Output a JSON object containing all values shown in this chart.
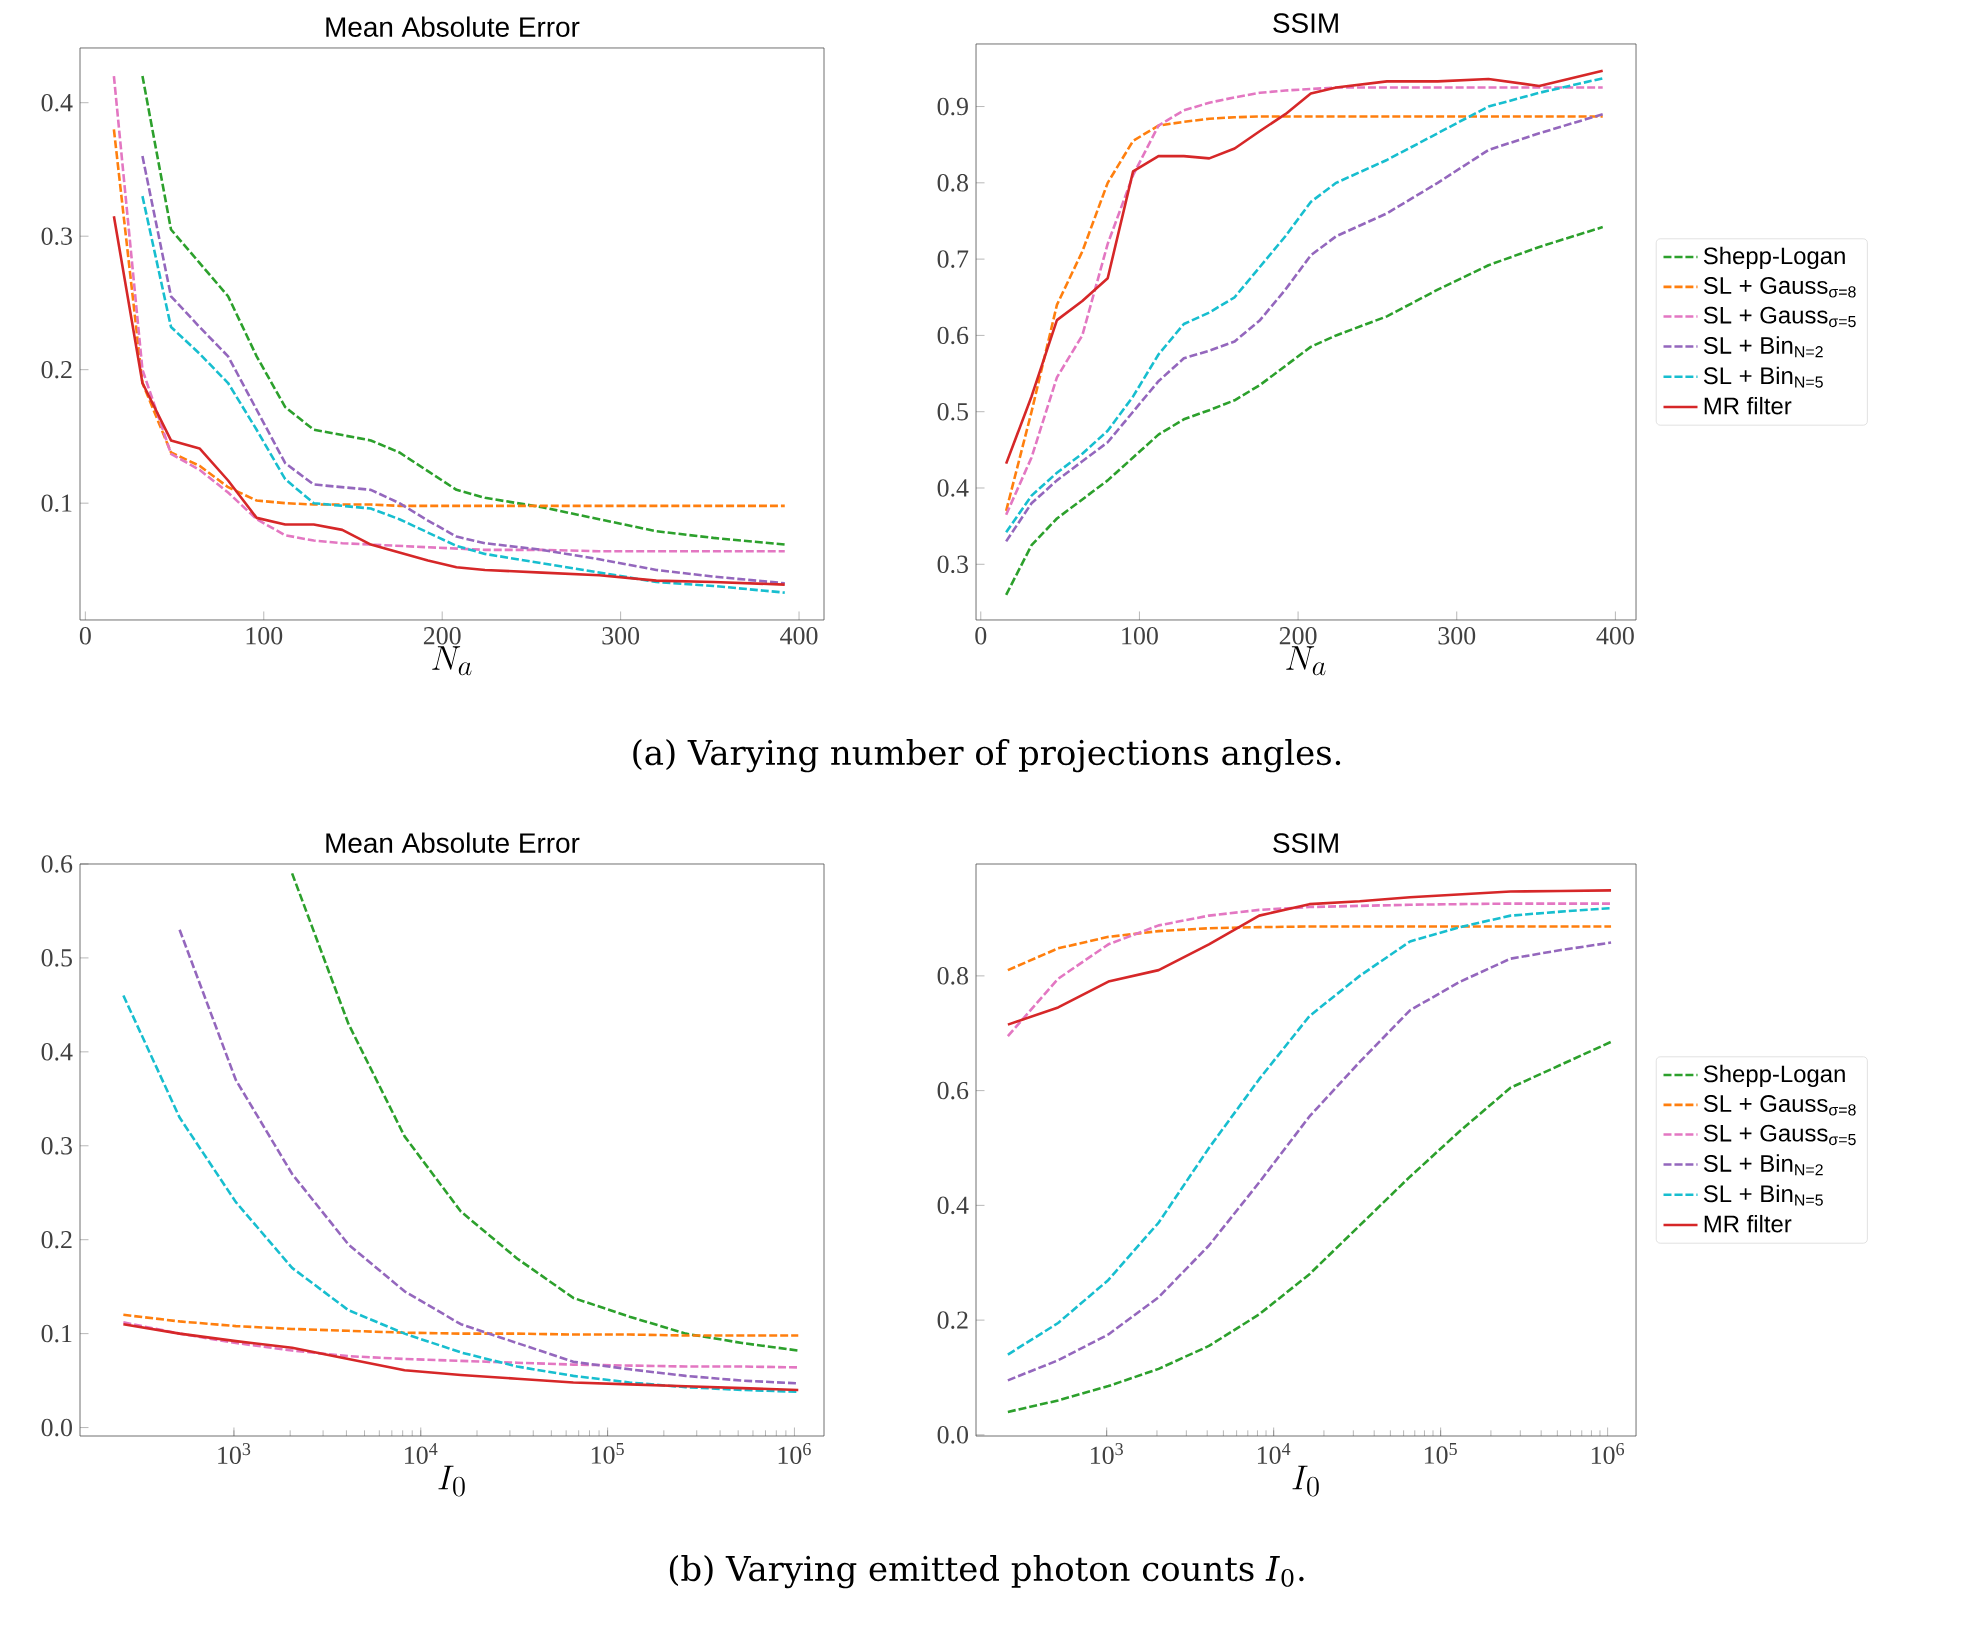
{
  "chart_data": [
    {
      "type": "line",
      "title": "Mean Absolute Error",
      "xlabel": "N_a",
      "x": [
        16,
        32,
        48,
        64,
        80,
        96,
        112,
        128,
        144,
        160,
        176,
        192,
        208,
        224,
        256,
        288,
        320,
        352,
        392
      ],
      "xlim": [
        -3,
        414
      ],
      "ylim": [
        0.0125,
        0.441
      ],
      "xticks": [
        0,
        100,
        200,
        300,
        400
      ],
      "yticks": [
        0.1,
        0.2,
        0.3,
        0.4
      ],
      "grid": false,
      "legend": false,
      "series": [
        {
          "color": "#2ca02c",
          "line_style": "dashed",
          "values": [
            null,
            0.42,
            0.305,
            0.28,
            0.255,
            0.21,
            0.172,
            0.155,
            0.151,
            0.147,
            0.138,
            0.124,
            0.11,
            0.104,
            0.097,
            0.088,
            0.079,
            0.074,
            0.069
          ]
        },
        {
          "color": "#ff7f0e",
          "line_style": "dashed",
          "values": [
            0.38,
            0.19,
            0.138,
            0.128,
            0.112,
            0.102,
            0.1,
            0.099,
            0.099,
            0.099,
            0.098,
            0.098,
            0.098,
            0.098,
            0.098,
            0.098,
            0.098,
            0.098,
            0.098
          ]
        },
        {
          "color": "#e377c2",
          "line_style": "dashed",
          "values": [
            0.42,
            0.2,
            0.137,
            0.125,
            0.108,
            0.088,
            0.076,
            0.072,
            0.07,
            0.069,
            0.068,
            0.067,
            0.066,
            0.065,
            0.065,
            0.064,
            0.064,
            0.064,
            0.064
          ]
        },
        {
          "color": "#9467bd",
          "line_style": "dashed",
          "values": [
            null,
            0.36,
            0.255,
            0.232,
            0.21,
            0.17,
            0.13,
            0.114,
            0.112,
            0.11,
            0.1,
            0.087,
            0.075,
            0.07,
            0.065,
            0.058,
            0.05,
            0.045,
            0.04
          ]
        },
        {
          "color": "#17becf",
          "line_style": "dashed",
          "values": [
            null,
            0.33,
            0.232,
            0.212,
            0.19,
            0.155,
            0.118,
            0.1,
            0.098,
            0.096,
            0.088,
            0.078,
            0.068,
            0.062,
            0.055,
            0.048,
            0.041,
            0.038,
            0.033
          ]
        },
        {
          "color": "#d62728",
          "line_style": "solid",
          "values": [
            0.315,
            0.19,
            0.147,
            0.141,
            0.117,
            0.089,
            0.084,
            0.084,
            0.08,
            0.069,
            0.063,
            0.057,
            0.052,
            0.05,
            0.048,
            0.046,
            0.042,
            0.041,
            0.039
          ]
        }
      ],
      "annotations": [
        "(a) Varying number of projections angles."
      ]
    },
    {
      "type": "line",
      "title": "SSIM",
      "xlabel": "N_a",
      "x": [
        16,
        32,
        48,
        64,
        80,
        96,
        112,
        128,
        144,
        160,
        176,
        192,
        208,
        224,
        256,
        288,
        320,
        352,
        392
      ],
      "xlim": [
        -3,
        413
      ],
      "ylim": [
        0.227,
        0.982
      ],
      "xticks": [
        0,
        100,
        200,
        300,
        400
      ],
      "yticks": [
        0.3,
        0.4,
        0.5,
        0.6,
        0.7,
        0.8,
        0.9
      ],
      "grid": false,
      "legend": "right",
      "series": [
        {
          "name": "Shepp-Logan",
          "color": "#2ca02c",
          "line_style": "dashed",
          "values": [
            0.26,
            0.325,
            0.36,
            0.385,
            0.41,
            0.44,
            0.47,
            0.49,
            0.502,
            0.515,
            0.535,
            0.56,
            0.585,
            0.6,
            0.625,
            0.66,
            0.692,
            0.716,
            0.742
          ]
        },
        {
          "name": "SL + Gauss$_{σ=8}$",
          "color": "#ff7f0e",
          "line_style": "dashed",
          "values": [
            0.37,
            0.5,
            0.64,
            0.71,
            0.8,
            0.855,
            0.875,
            0.88,
            0.884,
            0.886,
            0.887,
            0.887,
            0.887,
            0.887,
            0.887,
            0.887,
            0.887,
            0.887,
            0.887
          ]
        },
        {
          "name": "SL + Gauss$_{σ=5}$",
          "color": "#e377c2",
          "line_style": "dashed",
          "values": [
            0.365,
            0.44,
            0.545,
            0.6,
            0.72,
            0.81,
            0.875,
            0.895,
            0.905,
            0.912,
            0.918,
            0.921,
            0.923,
            0.925,
            0.925,
            0.925,
            0.925,
            0.925,
            0.925
          ]
        },
        {
          "name": "SL + Bin$_{N=2}$",
          "color": "#9467bd",
          "line_style": "dashed",
          "values": [
            0.33,
            0.38,
            0.41,
            0.435,
            0.46,
            0.5,
            0.54,
            0.57,
            0.58,
            0.592,
            0.62,
            0.66,
            0.705,
            0.73,
            0.76,
            0.8,
            0.843,
            0.865,
            0.89
          ]
        },
        {
          "name": "SL + Bin$_{N=5}$",
          "color": "#17becf",
          "line_style": "dashed",
          "values": [
            0.342,
            0.39,
            0.42,
            0.445,
            0.475,
            0.52,
            0.575,
            0.615,
            0.63,
            0.65,
            0.69,
            0.73,
            0.775,
            0.8,
            0.83,
            0.865,
            0.9,
            0.918,
            0.937
          ]
        },
        {
          "name": "MR filter",
          "color": "#d62728",
          "line_style": "solid",
          "values": [
            0.432,
            0.52,
            0.62,
            0.645,
            0.675,
            0.815,
            0.835,
            0.835,
            0.832,
            0.845,
            0.868,
            0.89,
            0.917,
            0.925,
            0.933,
            0.933,
            0.936,
            0.927,
            0.947
          ]
        }
      ]
    },
    {
      "type": "line",
      "title": "Mean Absolute Error",
      "xlabel": "I_0",
      "log": "x",
      "x": [
        256,
        512,
        1024,
        2048,
        4096,
        8192,
        16384,
        32768,
        65536,
        131072,
        262144,
        524288,
        1048576
      ],
      "xlim": [
        150,
        1440000
      ],
      "ylim": [
        -0.009,
        0.6
      ],
      "xticks": [
        {
          "value": 1000,
          "label": "10$^{3}$"
        },
        {
          "value": 10000,
          "label": "10$^{4}$"
        },
        {
          "value": 100000,
          "label": "10$^{5}$"
        },
        {
          "value": 1000000,
          "label": "10$^{6}$"
        }
      ],
      "yticks": [
        {
          "value": 0,
          "label": "0.0"
        },
        0.1,
        0.2,
        0.3,
        0.4,
        0.5,
        0.6
      ],
      "grid": false,
      "legend": false,
      "series": [
        {
          "color": "#2ca02c",
          "line_style": "dashed",
          "values": [
            null,
            null,
            null,
            0.59,
            0.43,
            0.31,
            0.23,
            0.18,
            0.138,
            0.118,
            0.1,
            0.09,
            0.082
          ]
        },
        {
          "color": "#ff7f0e",
          "line_style": "dashed",
          "values": [
            0.12,
            0.113,
            0.108,
            0.105,
            0.103,
            0.101,
            0.1,
            0.1,
            0.099,
            0.099,
            0.098,
            0.098,
            0.098
          ]
        },
        {
          "color": "#e377c2",
          "line_style": "dashed",
          "values": [
            0.112,
            0.1,
            0.09,
            0.082,
            0.076,
            0.073,
            0.071,
            0.069,
            0.067,
            0.066,
            0.065,
            0.065,
            0.064
          ]
        },
        {
          "color": "#9467bd",
          "line_style": "dashed",
          "values": [
            null,
            0.53,
            0.37,
            0.27,
            0.195,
            0.145,
            0.11,
            0.09,
            0.07,
            0.062,
            0.055,
            0.05,
            0.047
          ]
        },
        {
          "color": "#17becf",
          "line_style": "dashed",
          "values": [
            0.46,
            0.33,
            0.24,
            0.17,
            0.125,
            0.1,
            0.08,
            0.065,
            0.055,
            0.048,
            0.043,
            0.04,
            0.038
          ]
        },
        {
          "color": "#d62728",
          "line_style": "solid",
          "values": [
            0.11,
            0.1,
            0.092,
            0.085,
            0.073,
            0.061,
            0.056,
            0.052,
            0.048,
            0.046,
            0.044,
            0.042,
            0.04
          ]
        }
      ],
      "annotations": [
        "(b) Varying emitted photon counts *I*$_{0}$."
      ]
    },
    {
      "type": "line",
      "title": "SSIM",
      "xlabel": "I_0",
      "log": "x",
      "x": [
        256,
        512,
        1024,
        2048,
        4096,
        8192,
        16384,
        32768,
        65536,
        131072,
        262144,
        524288,
        1048576
      ],
      "xlim": [
        165,
        1480000
      ],
      "ylim": [
        -0.002,
        0.995
      ],
      "xticks": [
        {
          "value": 1000,
          "label": "10$^{3}$"
        },
        {
          "value": 10000,
          "label": "10$^{4}$"
        },
        {
          "value": 100000,
          "label": "10$^{5}$"
        },
        {
          "value": 1000000,
          "label": "10$^{6}$"
        }
      ],
      "yticks": [
        {
          "value": 0,
          "label": "0.0"
        },
        0.2,
        0.4,
        0.6,
        0.8
      ],
      "grid": false,
      "legend": "right",
      "series": [
        {
          "name": "Shepp-Logan",
          "color": "#2ca02c",
          "line_style": "dashed",
          "values": [
            0.04,
            0.06,
            0.085,
            0.115,
            0.155,
            0.21,
            0.28,
            0.365,
            0.45,
            0.53,
            0.605,
            0.645,
            0.685
          ]
        },
        {
          "name": "SL + Gauss$_{σ=8}$",
          "color": "#ff7f0e",
          "line_style": "dashed",
          "values": [
            0.81,
            0.848,
            0.868,
            0.878,
            0.883,
            0.885,
            0.886,
            0.886,
            0.886,
            0.886,
            0.886,
            0.886,
            0.886
          ]
        },
        {
          "name": "SL + Gauss$_{σ=5}$",
          "color": "#e377c2",
          "line_style": "dashed",
          "values": [
            0.695,
            0.795,
            0.855,
            0.888,
            0.905,
            0.915,
            0.92,
            0.922,
            0.924,
            0.925,
            0.926,
            0.926,
            0.926
          ]
        },
        {
          "name": "SL + Bin$_{N=2}$",
          "color": "#9467bd",
          "line_style": "dashed",
          "values": [
            0.095,
            0.13,
            0.175,
            0.24,
            0.33,
            0.44,
            0.555,
            0.65,
            0.74,
            0.79,
            0.83,
            0.845,
            0.858
          ]
        },
        {
          "name": "SL + Bin$_{N=5}$",
          "color": "#17becf",
          "line_style": "dashed",
          "values": [
            0.14,
            0.195,
            0.27,
            0.37,
            0.5,
            0.62,
            0.73,
            0.8,
            0.86,
            0.885,
            0.905,
            0.912,
            0.918
          ]
        },
        {
          "name": "MR filter",
          "color": "#d62728",
          "line_style": "solid",
          "values": [
            0.715,
            0.745,
            0.79,
            0.81,
            0.855,
            0.905,
            0.925,
            0.93,
            0.937,
            0.942,
            0.947,
            0.948,
            0.949
          ]
        }
      ]
    }
  ]
}
